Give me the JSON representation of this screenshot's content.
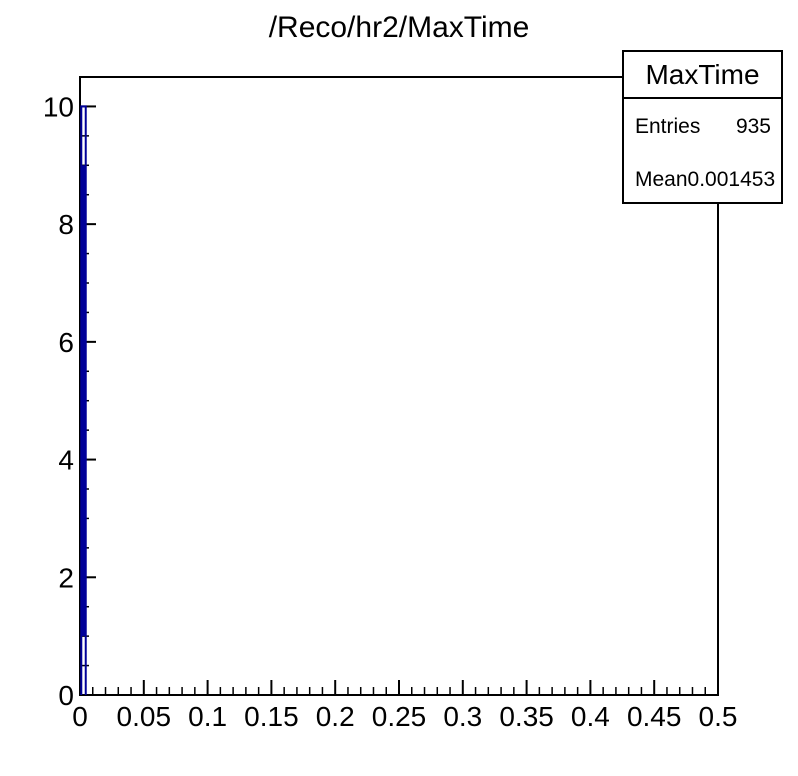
{
  "page": {
    "background_color": "#ffffff"
  },
  "chart_data": {
    "type": "histogram",
    "title": "/Reco/hr2/MaxTime",
    "xlabel": "",
    "ylabel": "",
    "x_range": [
      0,
      0.5
    ],
    "y_range": [
      0,
      10.5
    ],
    "x_tick_values": [
      0,
      0.05,
      0.1,
      0.15,
      0.2,
      0.25,
      0.3,
      0.35,
      0.4,
      0.45,
      0.5
    ],
    "x_tick_labels": [
      "0",
      "0.05",
      "0.1",
      "0.15",
      "0.2",
      "0.25",
      "0.3",
      "0.35",
      "0.4",
      "0.45",
      "0.5"
    ],
    "x_minor_tick_step": 0.01,
    "y_tick_values": [
      0,
      2,
      4,
      6,
      8,
      10
    ],
    "y_tick_labels": [
      "0",
      "2",
      "4",
      "6",
      "8",
      "10"
    ],
    "y_minor_tick_step": 0.5,
    "grid": false,
    "axis_color": "#000000",
    "frame_fill": "#ffffff",
    "series": [
      {
        "name": "MaxTime",
        "color": "#000099",
        "bins": [
          {
            "x_low": 0.0,
            "x_high": 0.0025,
            "count": 10
          },
          {
            "x_low": 0.0025,
            "x_high": 0.005,
            "count": 9
          },
          {
            "x_low": 0.005,
            "x_high": 0.0075,
            "count": 1
          }
        ],
        "spike_visual": {
          "x_low": 0.001,
          "x_high": 0.0045,
          "peak": 10,
          "solid_from": 1,
          "solid_to": 9
        }
      }
    ],
    "legend_position": "top-right"
  },
  "stats_box": {
    "title": "MaxTime",
    "rows": [
      {
        "label": "Entries",
        "value": "935"
      },
      {
        "label": "Mean",
        "value": "0.001453"
      }
    ]
  }
}
